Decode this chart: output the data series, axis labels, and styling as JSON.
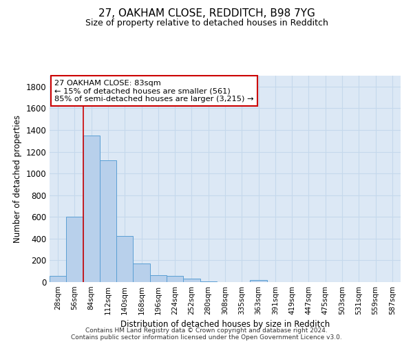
{
  "title": "27, OAKHAM CLOSE, REDDITCH, B98 7YG",
  "subtitle": "Size of property relative to detached houses in Redditch",
  "xlabel": "Distribution of detached houses by size in Redditch",
  "ylabel": "Number of detached properties",
  "categories": [
    "28sqm",
    "56sqm",
    "84sqm",
    "112sqm",
    "140sqm",
    "168sqm",
    "196sqm",
    "224sqm",
    "252sqm",
    "280sqm",
    "308sqm",
    "335sqm",
    "363sqm",
    "391sqm",
    "419sqm",
    "447sqm",
    "475sqm",
    "503sqm",
    "531sqm",
    "559sqm",
    "587sqm"
  ],
  "values": [
    55,
    600,
    1350,
    1120,
    425,
    170,
    65,
    60,
    30,
    5,
    0,
    0,
    20,
    0,
    0,
    0,
    0,
    0,
    0,
    0,
    0
  ],
  "bar_color": "#b8d0eb",
  "bar_edge_color": "#5a9fd4",
  "vline_color": "#cc0000",
  "annotation_text": "27 OAKHAM CLOSE: 83sqm\n← 15% of detached houses are smaller (561)\n85% of semi-detached houses are larger (3,215) →",
  "annotation_box_facecolor": "#ffffff",
  "annotation_box_edgecolor": "#cc0000",
  "ylim": [
    0,
    1900
  ],
  "yticks": [
    0,
    200,
    400,
    600,
    800,
    1000,
    1200,
    1400,
    1600,
    1800
  ],
  "grid_color": "#c5d8ec",
  "bg_color": "#dce8f5",
  "footer_line1": "Contains HM Land Registry data © Crown copyright and database right 2024.",
  "footer_line2": "Contains public sector information licensed under the Open Government Licence v3.0."
}
